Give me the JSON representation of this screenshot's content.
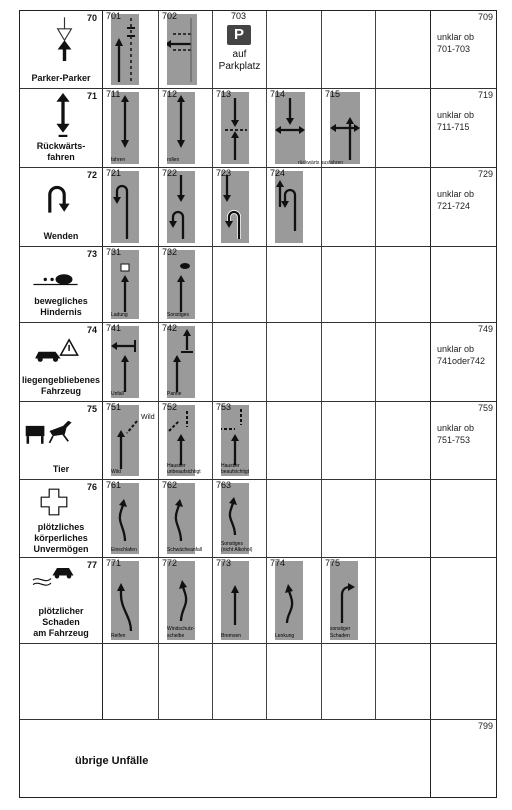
{
  "categories": [
    {
      "num": "70",
      "name": "Parker-Parker",
      "icon": "parking-arrow-icon",
      "subs": [
        {
          "code": "701",
          "label": ""
        },
        {
          "code": "702",
          "label": ""
        },
        {
          "code": "703",
          "label": ""
        }
      ],
      "parking": {
        "sign": "P",
        "text1": "auf",
        "text2": "Parkplatz"
      },
      "last": {
        "code": "709",
        "text1": "unklar ob",
        "text2": "701-703"
      }
    },
    {
      "num": "71",
      "name1": "Rückwärts-",
      "name2": "fahren",
      "icon": "reverse-arrow-icon",
      "subs": [
        {
          "code": "711",
          "label": "fahren"
        },
        {
          "code": "712",
          "label": "rollen"
        },
        {
          "code": "713",
          "label": ""
        },
        {
          "code": "714",
          "label": ""
        },
        {
          "code": "715",
          "label": ""
        }
      ],
      "span_label": "rückwärts ausfahren",
      "last": {
        "code": "719",
        "text1": "unklar ob",
        "text2": "711-715"
      }
    },
    {
      "num": "72",
      "name": "Wenden",
      "icon": "u-turn-icon",
      "subs": [
        {
          "code": "721",
          "label": ""
        },
        {
          "code": "722",
          "label": ""
        },
        {
          "code": "723",
          "label": ""
        },
        {
          "code": "724",
          "label": ""
        }
      ],
      "last": {
        "code": "729",
        "text1": "unklar ob",
        "text2": "721-724"
      }
    },
    {
      "num": "73",
      "name1": "bewegliches",
      "name2": "Hindernis",
      "icon": "obstacle-icon",
      "subs": [
        {
          "code": "731",
          "label": "Ladung"
        },
        {
          "code": "732",
          "label": "Sonstiges"
        }
      ]
    },
    {
      "num": "74",
      "name1": "liegengebliebenes",
      "name2": "Fahrzeug",
      "icon": "breakdown-icon",
      "subs": [
        {
          "code": "741",
          "label": "Unfall"
        },
        {
          "code": "742",
          "label": "Panne"
        }
      ],
      "last": {
        "code": "749",
        "text1": "unklar ob",
        "text2": "741oder742"
      }
    },
    {
      "num": "75",
      "name": "Tier",
      "icon": "animal-icon",
      "subs": [
        {
          "code": "751",
          "label": "Wild",
          "extra": "Wild"
        },
        {
          "code": "752",
          "label": "Haustier",
          "label2": "unbeaufsichtigt"
        },
        {
          "code": "753",
          "label": "Haustier",
          "label2": "beaufsichtigt"
        }
      ],
      "last": {
        "code": "759",
        "text1": "unklar ob",
        "text2": "751-753"
      }
    },
    {
      "num": "76",
      "name1": "plötzliches",
      "name2": "körperliches",
      "name3": "Unvermögen",
      "icon": "medical-cross-icon",
      "subs": [
        {
          "code": "761",
          "label": "Einschlafen"
        },
        {
          "code": "762",
          "label": "Schwächeanfall"
        },
        {
          "code": "763",
          "label": "Sonstiges",
          "label2": "(nicht Alkohol)"
        }
      ]
    },
    {
      "num": "77",
      "name1": "plötzlicher",
      "name2": "Schaden",
      "name3": "am Fahrzeug",
      "icon": "skid-car-icon",
      "subs": [
        {
          "code": "771",
          "label": "Reifen"
        },
        {
          "code": "772",
          "label": "Windschutz-",
          "label2": "scheibe"
        },
        {
          "code": "773",
          "label": "Bremsen"
        },
        {
          "code": "774",
          "label": "Lenkung"
        },
        {
          "code": "775",
          "label": "sonstiger",
          "label2": "Schaden"
        }
      ]
    }
  ],
  "footer": {
    "code": "799",
    "label": "übrige Unfälle"
  }
}
